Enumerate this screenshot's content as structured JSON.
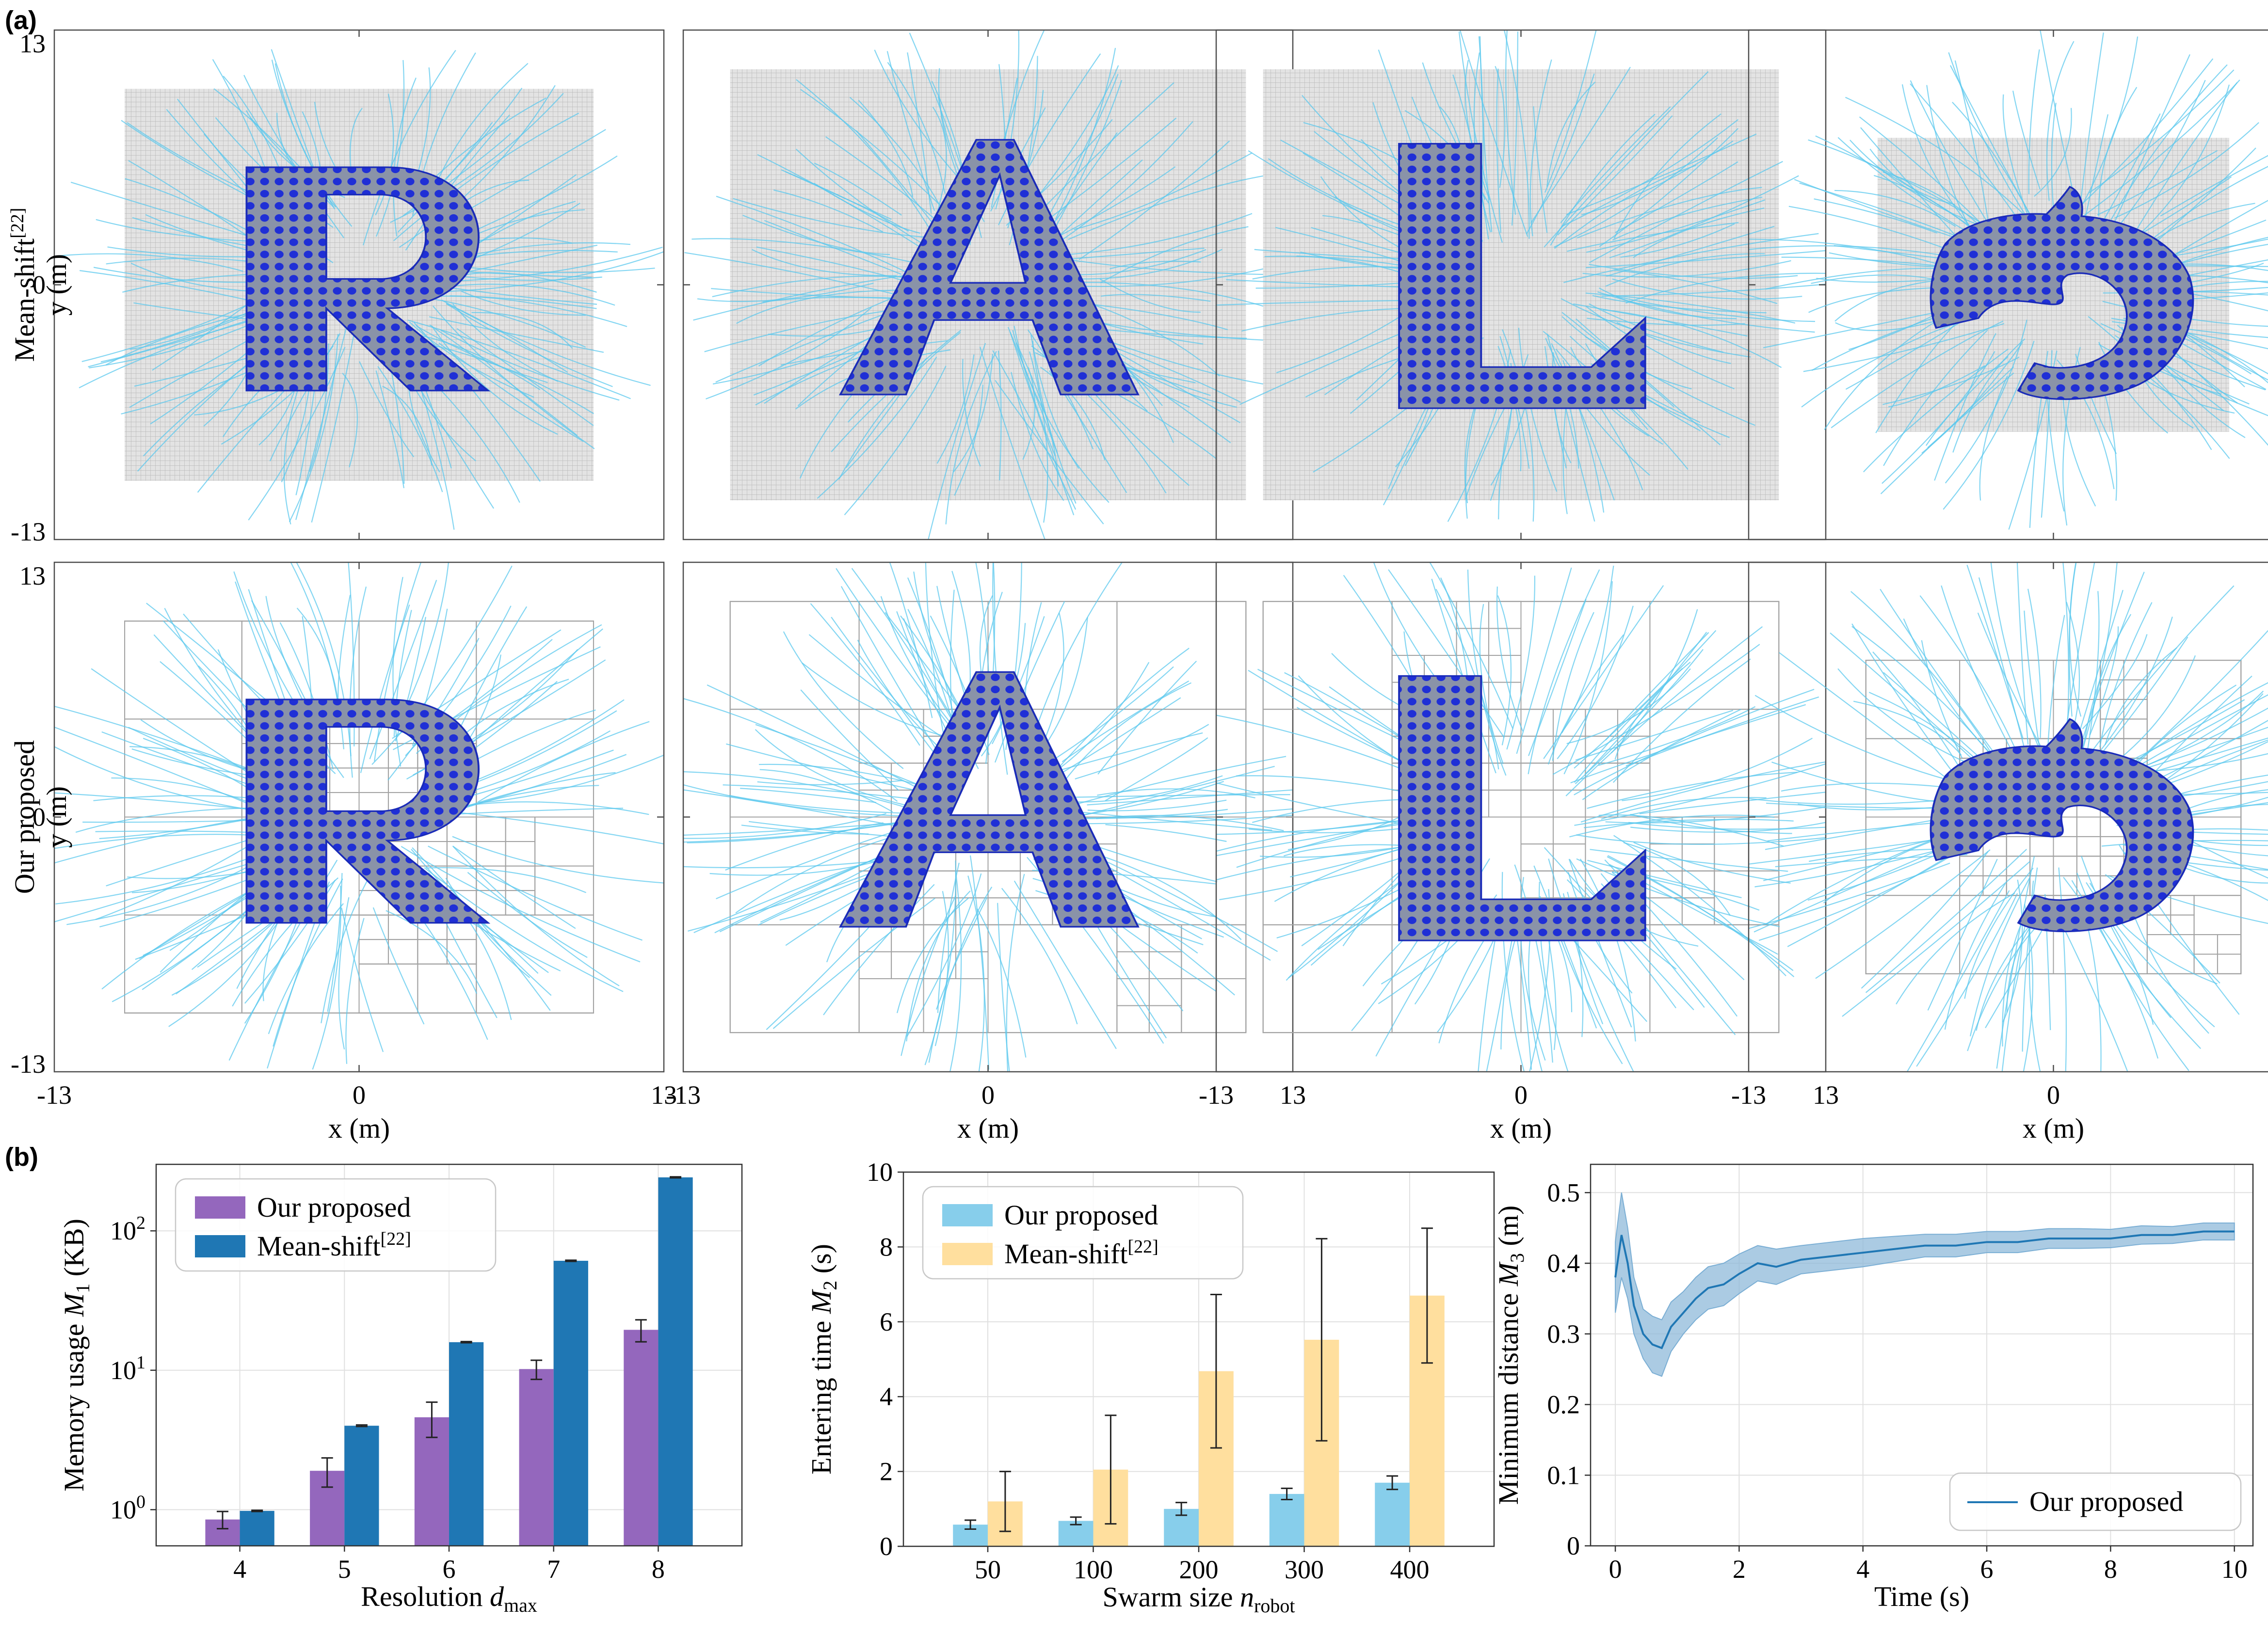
{
  "panel_labels": {
    "a": "(a)",
    "b": "(b)"
  },
  "panel_a": {
    "rows": [
      {
        "method": "Mean-shift",
        "superscript": "[22]",
        "ylabel": "y (m)"
      },
      {
        "method": "Our proposed",
        "superscript": "",
        "ylabel": "y (m)"
      }
    ],
    "columns": [
      "R",
      "A",
      "L",
      "dolphin"
    ],
    "xlabel": "x (m)",
    "axis_range": [
      -13,
      13
    ],
    "x_ticks": [
      "-13",
      "0",
      "13"
    ],
    "y_ticks": [
      "13",
      "0",
      "-13"
    ],
    "colors": {
      "robot": "#1f2fd6",
      "trajectory": "#5bc8ee",
      "grid": "#a9a9a9"
    }
  },
  "chart_data": [
    {
      "type": "bar",
      "title": "",
      "xlabel": "Resolution d_max",
      "xlabel_main": "Resolution ",
      "xlabel_var": "d",
      "xlabel_sub": "max",
      "ylabel": "Memory usage M_1 (KB)",
      "ylabel_main": "Memory usage ",
      "ylabel_var": "M",
      "ylabel_sub": "1",
      "ylabel_unit": " (KB)",
      "yscale": "log",
      "ylim": [
        0.55,
        300
      ],
      "y_ticks": [
        {
          "value": 1,
          "base": "10",
          "exp": "0"
        },
        {
          "value": 10,
          "base": "10",
          "exp": "1"
        },
        {
          "value": 100,
          "base": "10",
          "exp": "2"
        }
      ],
      "categories": [
        "4",
        "5",
        "6",
        "7",
        "8"
      ],
      "legend_position": "top-left",
      "series": [
        {
          "name": "Our proposed",
          "name_sup": "",
          "color": "#9467bd",
          "values": [
            0.85,
            1.9,
            4.6,
            10.2,
            19.5
          ],
          "err": [
            0.12,
            0.45,
            1.3,
            1.6,
            3.5
          ]
        },
        {
          "name": "Mean-shift",
          "name_sup": "[22]",
          "color": "#1f77b4",
          "values": [
            0.98,
            4.0,
            15.9,
            61.0,
            242.0
          ],
          "err": [
            0.01,
            0.05,
            0.15,
            0.6,
            2.0
          ]
        }
      ]
    },
    {
      "type": "bar",
      "title": "",
      "xlabel": "Swarm size n_robot",
      "xlabel_main": "Swarm size ",
      "xlabel_var": "n",
      "xlabel_sub": "robot",
      "ylabel": "Entering time M_2 (s)",
      "ylabel_main": "Entering time ",
      "ylabel_var": "M",
      "ylabel_sub": "2",
      "ylabel_unit": " (s)",
      "yscale": "linear",
      "ylim": [
        0,
        10
      ],
      "y_ticks": [
        {
          "value": 0,
          "base": "0"
        },
        {
          "value": 2,
          "base": "2"
        },
        {
          "value": 4,
          "base": "4"
        },
        {
          "value": 6,
          "base": "6"
        },
        {
          "value": 8,
          "base": "8"
        },
        {
          "value": 10,
          "base": "10"
        }
      ],
      "categories": [
        "50",
        "100",
        "200",
        "300",
        "400"
      ],
      "legend_position": "top-left",
      "series": [
        {
          "name": "Our proposed",
          "name_sup": "",
          "color": "#87ceeb",
          "values": [
            0.58,
            0.68,
            1.0,
            1.4,
            1.7
          ],
          "err": [
            0.12,
            0.1,
            0.17,
            0.15,
            0.18
          ]
        },
        {
          "name": "Mean-shift",
          "name_sup": "[22]",
          "color": "#ffdf9e",
          "values": [
            1.2,
            2.05,
            4.68,
            5.52,
            6.7
          ],
          "err": [
            0.8,
            1.45,
            2.05,
            2.7,
            1.8
          ]
        }
      ]
    },
    {
      "type": "line",
      "title": "",
      "xlabel": "Time (s)",
      "ylabel": "Minimum distance M_3 (m)",
      "ylabel_main": "Minimum distance ",
      "ylabel_var": "M",
      "ylabel_sub": "3",
      "ylabel_unit": " (m)",
      "xlim": [
        -0.4,
        10.3
      ],
      "ylim": [
        0,
        0.54
      ],
      "x_ticks": [
        "0",
        "2",
        "4",
        "6",
        "8",
        "10"
      ],
      "y_ticks": [
        "0",
        "0.1",
        "0.2",
        "0.3",
        "0.4",
        "0.5"
      ],
      "legend_position": "bottom-right",
      "series": [
        {
          "name": "Our proposed",
          "color": "#1f77b4",
          "band_color": "#8fb9d9",
          "x": [
            0,
            0.1,
            0.2,
            0.3,
            0.45,
            0.6,
            0.75,
            0.9,
            1.1,
            1.3,
            1.5,
            1.75,
            2.0,
            2.3,
            2.6,
            3.0,
            3.5,
            4.0,
            4.5,
            5.0,
            5.5,
            6.0,
            6.5,
            7.0,
            7.5,
            8.0,
            8.5,
            9.0,
            9.5,
            10.0
          ],
          "y": [
            0.38,
            0.44,
            0.4,
            0.34,
            0.3,
            0.285,
            0.28,
            0.31,
            0.33,
            0.35,
            0.365,
            0.37,
            0.385,
            0.4,
            0.395,
            0.405,
            0.41,
            0.415,
            0.42,
            0.425,
            0.425,
            0.43,
            0.43,
            0.435,
            0.435,
            0.435,
            0.44,
            0.44,
            0.445,
            0.445
          ],
          "band": [
            0.05,
            0.06,
            0.05,
            0.04,
            0.035,
            0.04,
            0.04,
            0.035,
            0.03,
            0.03,
            0.03,
            0.03,
            0.028,
            0.025,
            0.025,
            0.02,
            0.02,
            0.02,
            0.018,
            0.016,
            0.016,
            0.015,
            0.015,
            0.014,
            0.014,
            0.013,
            0.013,
            0.012,
            0.012,
            0.012
          ]
        }
      ]
    }
  ]
}
